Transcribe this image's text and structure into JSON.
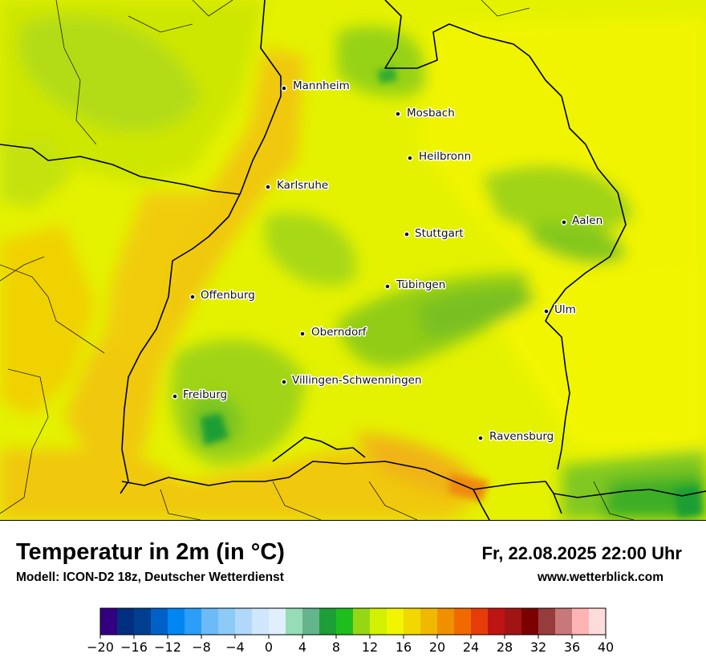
{
  "map": {
    "cities": [
      {
        "name": "Mannheim"
      },
      {
        "name": "Mosbach"
      },
      {
        "name": "Heilbronn"
      },
      {
        "name": "Karlsruhe"
      },
      {
        "name": "Aalen"
      },
      {
        "name": "Stuttgart"
      },
      {
        "name": "Tübingen"
      },
      {
        "name": "Offenburg"
      },
      {
        "name": "Ulm"
      },
      {
        "name": "Oberndorf"
      },
      {
        "name": "Villingen-Schwenningen"
      },
      {
        "name": "Freiburg"
      },
      {
        "name": "Ravensburg"
      }
    ]
  },
  "header": {
    "title": "Temperatur in 2m (in °C)",
    "subtitle": "Modell: ICON-D2 18z, Deutscher Wetterdienst",
    "datetime": "Fr, 22.08.2025 22:00 Uhr",
    "website": "www.wetterblick.com"
  },
  "legend": {
    "ticks": [
      "−20",
      "−16",
      "−12",
      "−8",
      "−4",
      "0",
      "4",
      "8",
      "12",
      "16",
      "20",
      "24",
      "28",
      "32",
      "36",
      "40"
    ],
    "colors": [
      "#33007f",
      "#002f7f",
      "#003f8f",
      "#0060c8",
      "#0086f0",
      "#2a9ef8",
      "#6cbaf8",
      "#8ccaf8",
      "#b0d8fb",
      "#d0e6fc",
      "#e0effd",
      "#96dcb4",
      "#64b48c",
      "#1e9e36",
      "#1ebe1e",
      "#96d714",
      "#d2f000",
      "#f2f500",
      "#f0d800",
      "#f0b800",
      "#f09000",
      "#f06a00",
      "#e63c0a",
      "#be1414",
      "#a01414",
      "#7c0000",
      "#963c3c",
      "#c87878",
      "#ffb4b4",
      "#ffdcdc"
    ]
  }
}
